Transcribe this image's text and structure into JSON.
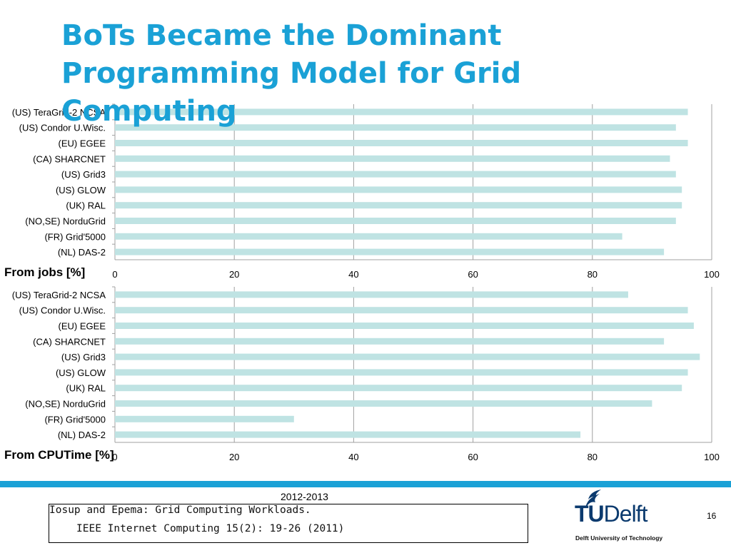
{
  "slide": {
    "title": "BoTs Became the Dominant Programming Model for Grid Computing",
    "footer_year": "2012-2013",
    "citation": {
      "line1": "Iosup and Epema: Grid Computing Workloads.",
      "line2": "IEEE Internet Computing 15(2): 19-26 (2011)"
    },
    "logo": {
      "tu": "TU",
      "delft": "Delft",
      "subtitle": "Delft University of Technology"
    },
    "page_number": "16",
    "colors": {
      "title": "#1aa1d6",
      "bar": "#bfe3e3",
      "footer_band": "#1aa1d6",
      "logo": "#0b3a6e"
    }
  },
  "chart_data": [
    {
      "type": "bar",
      "orientation": "horizontal",
      "caption": "From jobs [%]",
      "categories": [
        "(US) TeraGrid-2 NCSA",
        "(US) Condor U.Wisc.",
        "(EU) EGEE",
        "(CA) SHARCNET",
        "(US) Grid3",
        "(US) GLOW",
        "(UK) RAL",
        "(NO,SE) NorduGrid",
        "(FR) Grid'5000",
        "(NL) DAS-2"
      ],
      "values": [
        96,
        94,
        96,
        93,
        94,
        95,
        95,
        94,
        85,
        92
      ],
      "xlim": [
        0,
        100
      ],
      "xticks": [
        0,
        20,
        40,
        60,
        80,
        100
      ],
      "grid": true
    },
    {
      "type": "bar",
      "orientation": "horizontal",
      "caption": "From CPUTime [%]",
      "categories": [
        "(US) TeraGrid-2 NCSA",
        "(US) Condor U.Wisc.",
        "(EU) EGEE",
        "(CA) SHARCNET",
        "(US) Grid3",
        "(US) GLOW",
        "(UK) RAL",
        "(NO,SE) NorduGrid",
        "(FR) Grid'5000",
        "(NL) DAS-2"
      ],
      "values": [
        86,
        96,
        97,
        92,
        98,
        96,
        95,
        90,
        30,
        78
      ],
      "xlim": [
        0,
        100
      ],
      "xticks": [
        0,
        20,
        40,
        60,
        80,
        100
      ],
      "grid": true
    }
  ]
}
